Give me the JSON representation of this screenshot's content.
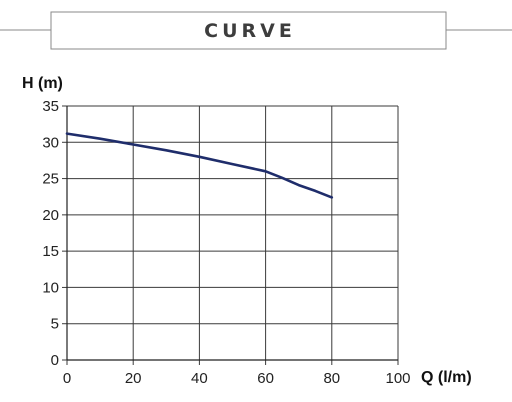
{
  "header": {
    "title": "CURVE"
  },
  "chart_data": {
    "type": "line",
    "title": "CURVE",
    "xlabel": "Q (l/m)",
    "ylabel": "H (m)",
    "xlim": [
      0,
      100
    ],
    "ylim": [
      0,
      35
    ],
    "xticks": [
      0,
      20,
      40,
      60,
      80,
      100
    ],
    "yticks": [
      0,
      5,
      10,
      15,
      20,
      25,
      30,
      35
    ],
    "grid": true,
    "series": [
      {
        "color": "#1f2d6b",
        "x": [
          0,
          10,
          20,
          30,
          40,
          50,
          60,
          65,
          70,
          75,
          80
        ],
        "y": [
          31.2,
          30.5,
          29.7,
          28.9,
          28.0,
          27.0,
          26.0,
          25.1,
          24.1,
          23.3,
          22.4
        ]
      }
    ]
  }
}
